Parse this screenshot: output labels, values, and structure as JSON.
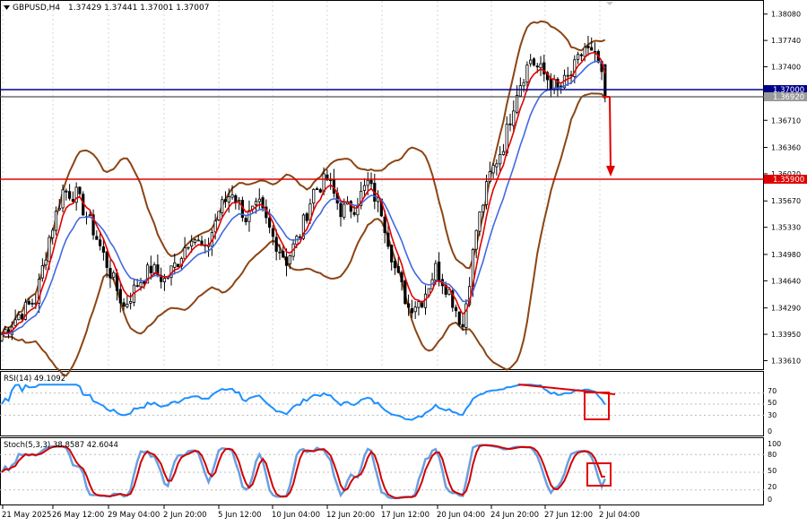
{
  "window": {
    "symbol_title": "GBPUSD,H4",
    "ohlc": "1.37429 1.37441 1.37001 1.37007"
  },
  "colors": {
    "background": "#ffffff",
    "grid": "#d6d6d6",
    "candle": "#000000",
    "bollinger": "#8b4513",
    "ema_fast": "#e00000",
    "ema_slow": "#4169e1",
    "resistance_line": "#00008b",
    "support_line": "#e00000",
    "rsi_line": "#1e90ff",
    "stoch_main": "#6a9fe0",
    "stoch_signal": "#d00000",
    "annotation": "#e00000",
    "price_tag_blue": "#00008b",
    "price_tag_gray": "#9a9a9a"
  },
  "price_axis": {
    "ticks": [
      "1.38080",
      "1.37740",
      "1.37400",
      "1.37060",
      "1.36710",
      "1.36360",
      "1.36020",
      "1.35670",
      "1.35330",
      "1.34980",
      "1.34640",
      "1.34290",
      "1.33950",
      "1.33610"
    ],
    "tags": {
      "level_high": "1.37000",
      "level_mid": "1.36920",
      "level_low": "1.35900"
    }
  },
  "time_axis": {
    "labels": [
      "21 May 2025",
      "26 May 12:00",
      "29 May 04:00",
      "2 Jun 20:00",
      "5 Jun 12:00",
      "10 Jun 04:00",
      "12 Jun 20:00",
      "17 Jun 12:00",
      "20 Jun 04:00",
      "24 Jun 20:00",
      "27 Jun 12:00",
      "2 Jul 04:00"
    ]
  },
  "rsi": {
    "title": "RSI(14) 49.1092",
    "levels": [
      "70",
      "50",
      "30",
      "0"
    ]
  },
  "stoch": {
    "title": "Stoch(5,3,3) 38.8587 42.6044",
    "levels": [
      "100",
      "80",
      "50",
      "20",
      "0"
    ]
  },
  "chart_data": {
    "type": "candlestick",
    "symbol": "GBPUSD",
    "timeframe": "H4",
    "ylim": [
      1.335,
      1.3825
    ],
    "horizontal_levels": [
      {
        "price": 1.37,
        "color": "#00008b"
      },
      {
        "price": 1.3692,
        "color": "#505050"
      },
      {
        "price": 1.359,
        "color": "#e00000"
      }
    ],
    "price_path_knots": [
      [
        0,
        1.3395
      ],
      [
        5,
        1.342
      ],
      [
        10,
        1.344
      ],
      [
        14,
        1.352
      ],
      [
        18,
        1.358
      ],
      [
        22,
        1.3575
      ],
      [
        27,
        1.353
      ],
      [
        32,
        1.3475
      ],
      [
        36,
        1.343
      ],
      [
        40,
        1.346
      ],
      [
        44,
        1.348
      ],
      [
        48,
        1.3465
      ],
      [
        52,
        1.349
      ],
      [
        56,
        1.3525
      ],
      [
        60,
        1.35
      ],
      [
        64,
        1.3555
      ],
      [
        68,
        1.358
      ],
      [
        72,
        1.3545
      ],
      [
        76,
        1.356
      ],
      [
        80,
        1.352
      ],
      [
        84,
        1.349
      ],
      [
        88,
        1.3525
      ],
      [
        92,
        1.358
      ],
      [
        96,
        1.3595
      ],
      [
        100,
        1.3555
      ],
      [
        104,
        1.356
      ],
      [
        108,
        1.359
      ],
      [
        112,
        1.3555
      ],
      [
        116,
        1.348
      ],
      [
        120,
        1.343
      ],
      [
        124,
        1.344
      ],
      [
        128,
        1.348
      ],
      [
        132,
        1.345
      ],
      [
        136,
        1.3405
      ],
      [
        140,
        1.353
      ],
      [
        144,
        1.36
      ],
      [
        148,
        1.364
      ],
      [
        152,
        1.371
      ],
      [
        156,
        1.375
      ],
      [
        160,
        1.373
      ],
      [
        164,
        1.371
      ],
      [
        168,
        1.373
      ],
      [
        172,
        1.3765
      ],
      [
        176,
        1.3745
      ],
      [
        178,
        1.3701
      ]
    ],
    "rsi": {
      "value": 49.1092,
      "levels": [
        70,
        50,
        30
      ]
    },
    "stochastic": {
      "main": 38.8587,
      "signal": 42.6044,
      "levels": [
        80,
        50,
        20
      ]
    }
  }
}
